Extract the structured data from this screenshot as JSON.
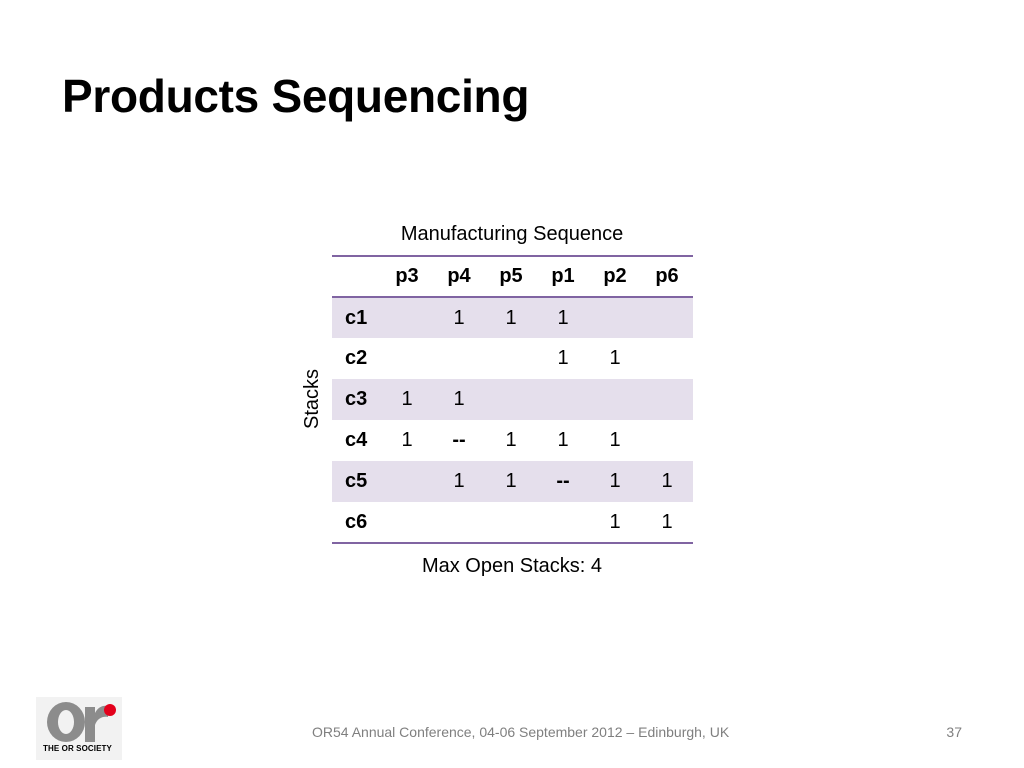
{
  "slide": {
    "title": "Products Sequencing",
    "slide_number": "37"
  },
  "table": {
    "caption": "Manufacturing Sequence",
    "side_label": "Stacks",
    "columns": [
      "p3",
      "p4",
      "p5",
      "p1",
      "p2",
      "p6"
    ],
    "rows": [
      {
        "label": "c1",
        "cells": [
          "",
          "1",
          "1",
          "1",
          "",
          ""
        ]
      },
      {
        "label": "c2",
        "cells": [
          "",
          "",
          "",
          "1",
          "1",
          ""
        ]
      },
      {
        "label": "c3",
        "cells": [
          "1",
          "1",
          "",
          "",
          "",
          ""
        ]
      },
      {
        "label": "c4",
        "cells": [
          "1",
          "--",
          "1",
          "1",
          "1",
          ""
        ]
      },
      {
        "label": "c5",
        "cells": [
          "",
          "1",
          "1",
          "--",
          "1",
          "1"
        ]
      },
      {
        "label": "c6",
        "cells": [
          "",
          "",
          "",
          "",
          "1",
          "1"
        ]
      }
    ],
    "footer": "Max Open Stacks: 4"
  },
  "footer": {
    "text": "OR54 Annual Conference, 04-06 September 2012 – Edinburgh, UK",
    "logo_text": "THE OR SOCIETY"
  },
  "colors": {
    "accent": "#8064a2",
    "band": "#e5dfec",
    "logo_gray": "#8c8c8c",
    "logo_red": "#e3001b"
  }
}
